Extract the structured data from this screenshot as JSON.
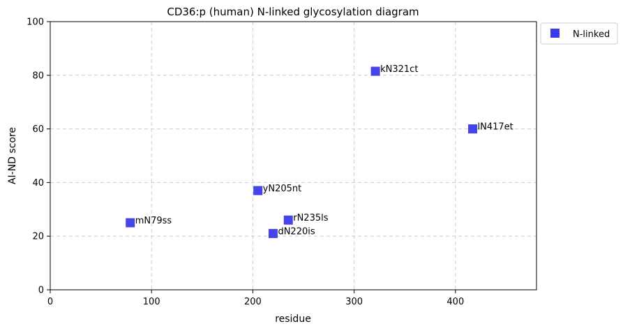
{
  "chart_data": {
    "type": "scatter",
    "title": "CD36:p (human) N-linked glycosylation diagram",
    "xlabel": "residue",
    "ylabel": "AI-ND score",
    "xlim": [
      0,
      480
    ],
    "ylim": [
      0,
      100
    ],
    "xticks": [
      0,
      100,
      200,
      300,
      400
    ],
    "yticks": [
      0,
      20,
      40,
      60,
      80,
      100
    ],
    "grid": true,
    "legend_position": "outside-top-right",
    "series": [
      {
        "name": "N-linked",
        "color": "#3a3ae8",
        "marker": "square",
        "points": [
          {
            "x": 79,
            "y": 25,
            "label": "mN79ss"
          },
          {
            "x": 205,
            "y": 37,
            "label": "yN205nt"
          },
          {
            "x": 220,
            "y": 21,
            "label": "dN220is"
          },
          {
            "x": 235,
            "y": 26,
            "label": "rN235ls"
          },
          {
            "x": 321,
            "y": 81.5,
            "label": "kN321ct"
          },
          {
            "x": 417,
            "y": 60,
            "label": "lN417et"
          }
        ]
      }
    ]
  }
}
